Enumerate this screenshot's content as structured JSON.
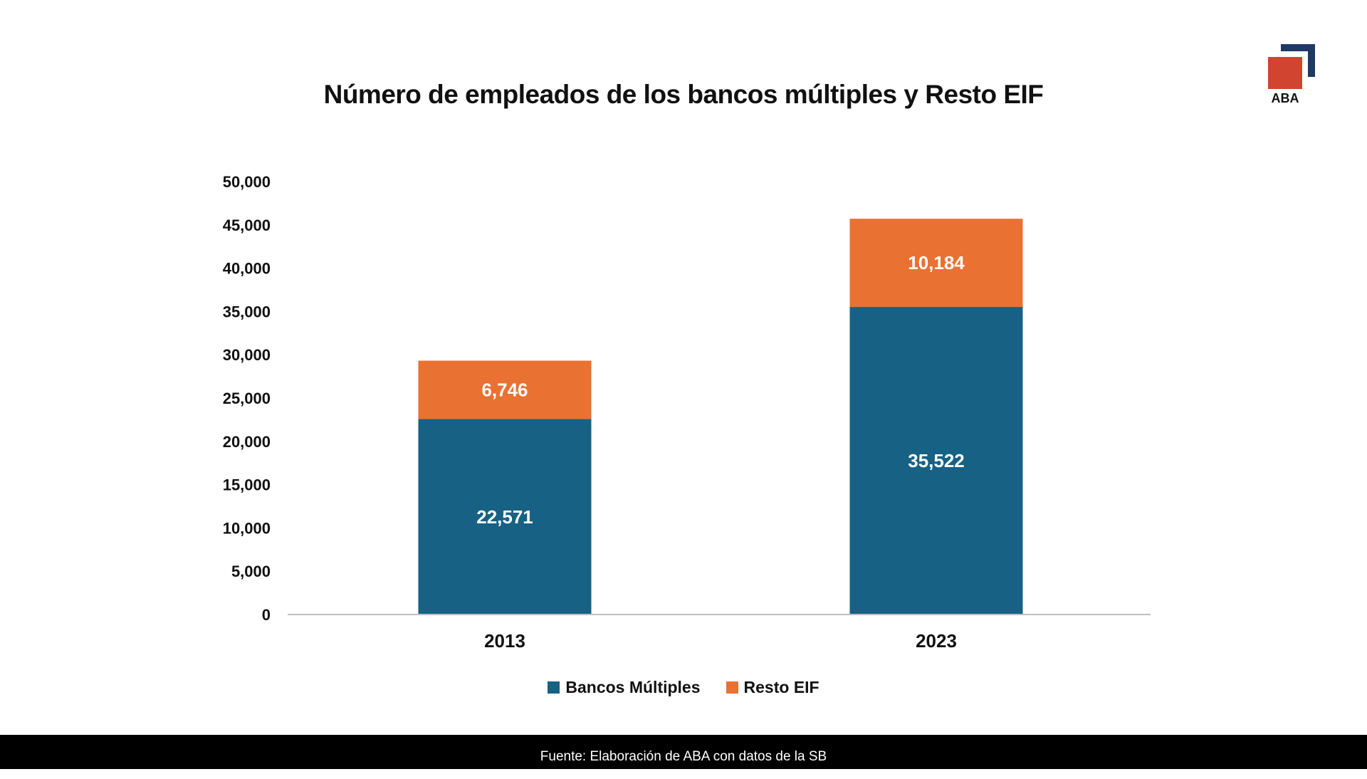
{
  "logo": {
    "text": "ABA"
  },
  "footer": {
    "source": "Fuente: Elaboración de ABA con datos de la SB"
  },
  "chart_data": {
    "type": "bar",
    "stacked": true,
    "title": "Número de empleados de los bancos múltiples y Resto EIF",
    "categories": [
      "2013",
      "2023"
    ],
    "series": [
      {
        "name": "Bancos Múltiples",
        "values": [
          22571,
          35522
        ],
        "labels": [
          "22,571",
          "35,522"
        ],
        "color": "#176184"
      },
      {
        "name": "Resto EIF",
        "values": [
          6746,
          10184
        ],
        "labels": [
          "6,746",
          "10,184"
        ],
        "color": "#E97132"
      }
    ],
    "ylim": [
      0,
      50000
    ],
    "yticks": [
      "0",
      "5,000",
      "10,000",
      "15,000",
      "20,000",
      "25,000",
      "30,000",
      "35,000",
      "40,000",
      "45,000",
      "50,000"
    ],
    "xlabel": "",
    "ylabel": "",
    "grid": false,
    "legend": "bottom-center"
  }
}
